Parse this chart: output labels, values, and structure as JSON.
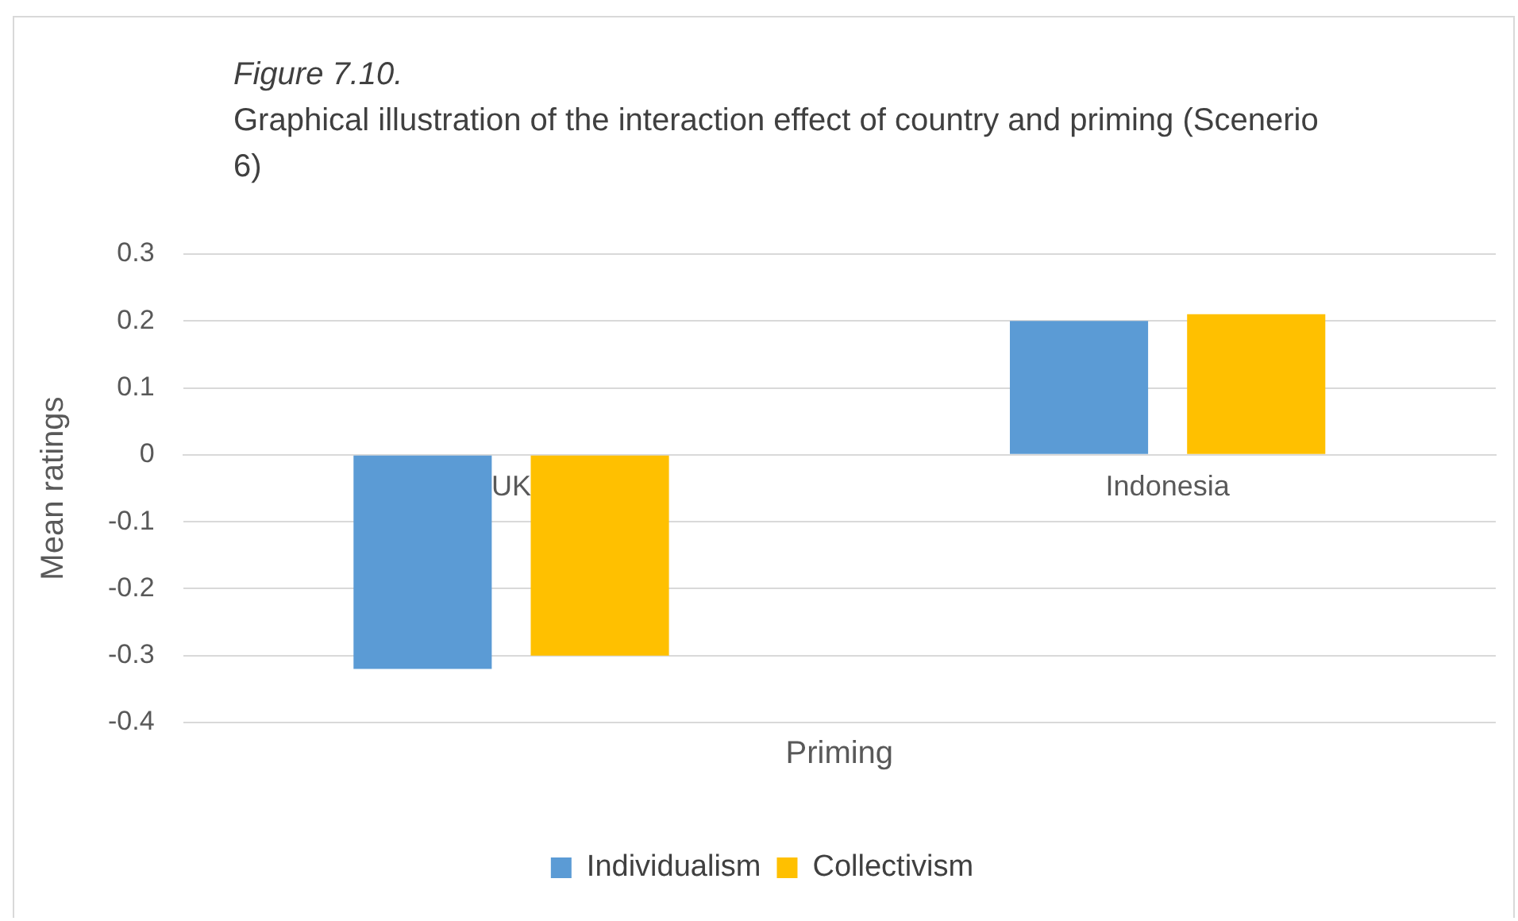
{
  "chart_data": {
    "type": "bar",
    "title": "Figure 7.10.",
    "subtitle": "Graphical illustration of the interaction effect of country and priming (Scenerio 6)",
    "xlabel": "Priming",
    "ylabel": "Mean ratings",
    "categories": [
      "UK",
      "Indonesia"
    ],
    "series": [
      {
        "name": "Individualism",
        "color": "#5b9bd5",
        "values": [
          -0.32,
          0.2
        ]
      },
      {
        "name": "Collectivism",
        "color": "#ffc000",
        "values": [
          -0.3,
          0.21
        ]
      }
    ],
    "ylim": [
      -0.4,
      0.3
    ],
    "yticks": [
      -0.4,
      -0.3,
      -0.2,
      -0.1,
      0,
      0.1,
      0.2,
      0.3
    ],
    "grid": "y",
    "legend": "bottom"
  }
}
